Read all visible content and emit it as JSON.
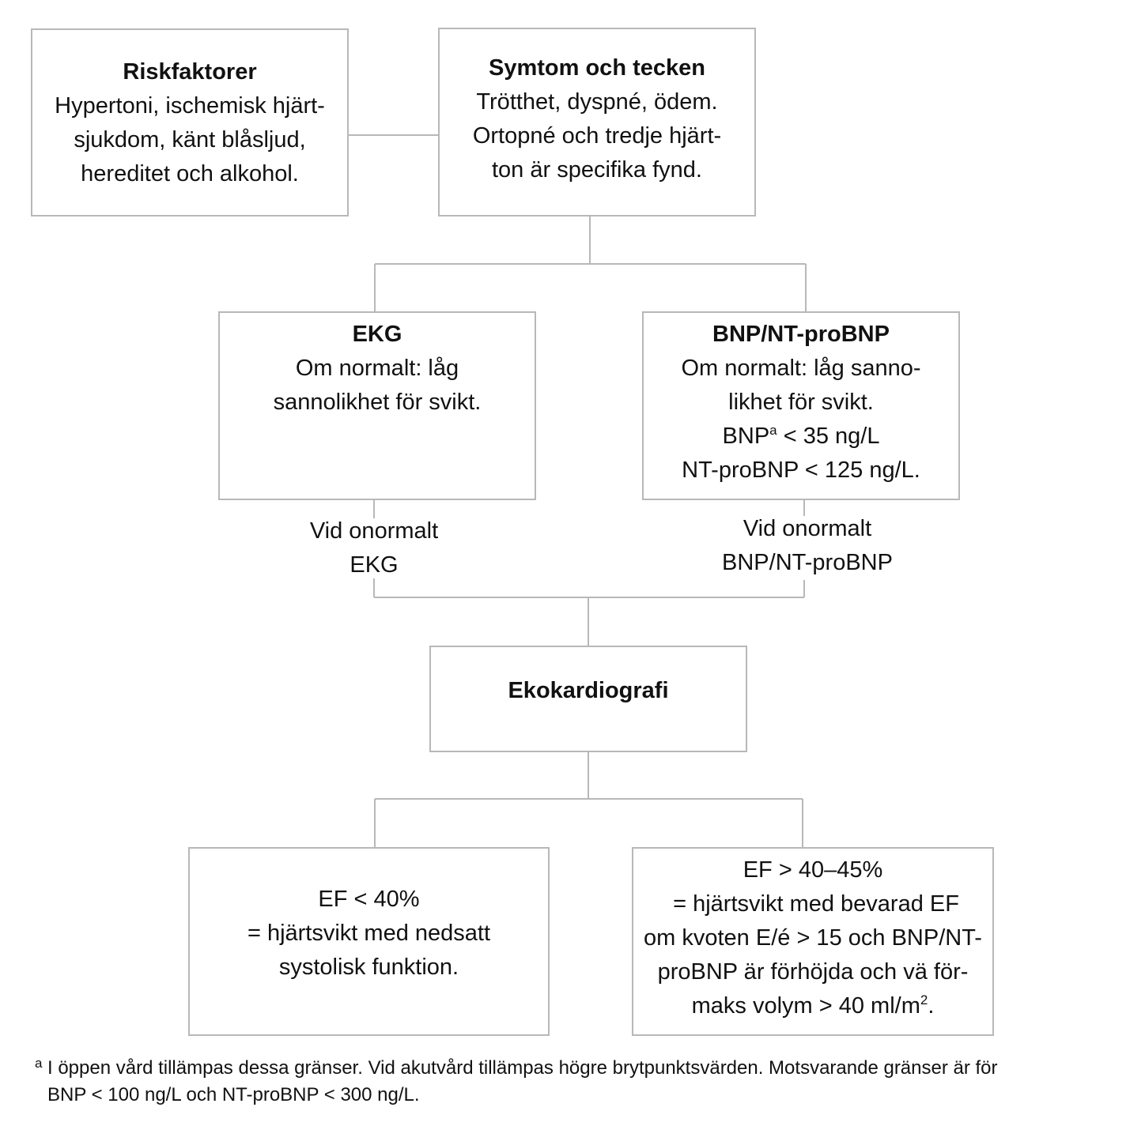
{
  "boxes": {
    "riskfaktorer": {
      "title": "Riskfaktorer",
      "lines": [
        "Hypertoni, ischemisk hjärt-",
        "sjukdom, känt blåsljud,",
        "hereditet och alkohol."
      ]
    },
    "symtom": {
      "title": "Symtom och tecken",
      "lines": [
        "Trötthet, dyspné, ödem.",
        "Ortopné och tredje hjärt-",
        "ton är specifika fynd."
      ]
    },
    "ekg": {
      "title": "EKG",
      "lines": [
        "Om normalt: låg",
        "sannolikhet för svikt."
      ]
    },
    "bnp": {
      "title": "BNP/NT-proBNP",
      "lines": [
        "Om normalt: låg sanno-",
        "likhet för svikt."
      ],
      "bnp_prefix": "BNP",
      "bnp_sup": "a",
      "bnp_rest": " < 35 ng/L",
      "ntprobnp_line": "NT-proBNP < 125 ng/L."
    },
    "eko": {
      "title": "Ekokardiografi"
    },
    "ef_low": {
      "lines": [
        "EF < 40%",
        "= hjärtsvikt med nedsatt",
        "systolisk funktion."
      ]
    },
    "ef_high": {
      "lines": [
        "EF > 40–45%",
        " = hjärtsvikt med bevarad EF",
        "om kvoten E/é > 15 och BNP/NT-",
        "proBNP är förhöjda och vä för-"
      ],
      "last_prefix": "maks volym > 40 ml/m",
      "last_sup": "2",
      "last_suffix": "."
    }
  },
  "labels": {
    "ekg_abnormal": [
      "Vid onormalt",
      "EKG"
    ],
    "bnp_abnormal": [
      "Vid onormalt",
      "BNP/NT-proBNP"
    ]
  },
  "footnote": {
    "marker": "a",
    "line1": "I öppen vård tillämpas dessa gränser. Vid akutvård tillämpas högre brytpunktsvärden. Motsvarande gränser är för",
    "line2": "BNP < 100 ng/L och NT-proBNP < 300 ng/L."
  }
}
